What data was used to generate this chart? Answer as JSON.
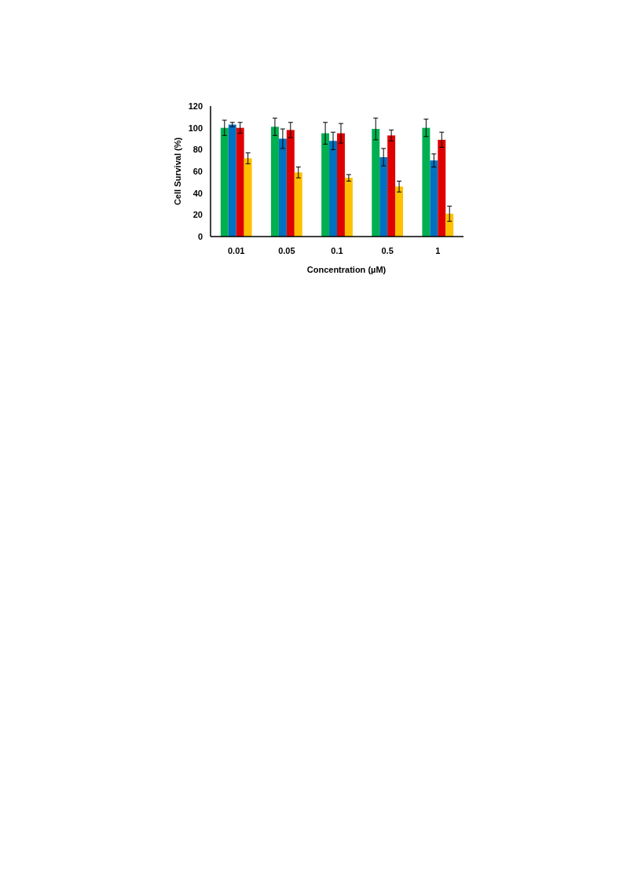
{
  "chart_data": {
    "type": "bar",
    "xlabel": "Concentration (µM)",
    "ylabel": "Cell Survival (%)",
    "categories": [
      "0.01",
      "0.05",
      "0.1",
      "0.5",
      "1"
    ],
    "series": [
      {
        "color": "#00b050",
        "values": [
          100,
          101,
          95,
          99,
          100
        ],
        "errors": [
          7,
          8,
          10,
          10,
          8
        ]
      },
      {
        "color": "#0070c0",
        "values": [
          103,
          90,
          88,
          73,
          70
        ],
        "errors": [
          2,
          9,
          8,
          8,
          6
        ]
      },
      {
        "color": "#e00000",
        "values": [
          100,
          98,
          95,
          93,
          89
        ],
        "errors": [
          5,
          7,
          9,
          5,
          7
        ]
      },
      {
        "color": "#ffc000",
        "values": [
          72,
          59,
          54,
          46,
          21
        ],
        "errors": [
          5,
          5,
          3,
          5,
          7
        ]
      }
    ],
    "ylim": [
      0,
      120
    ],
    "yticks": [
      0,
      20,
      40,
      60,
      80,
      100,
      120
    ],
    "grid": false
  }
}
